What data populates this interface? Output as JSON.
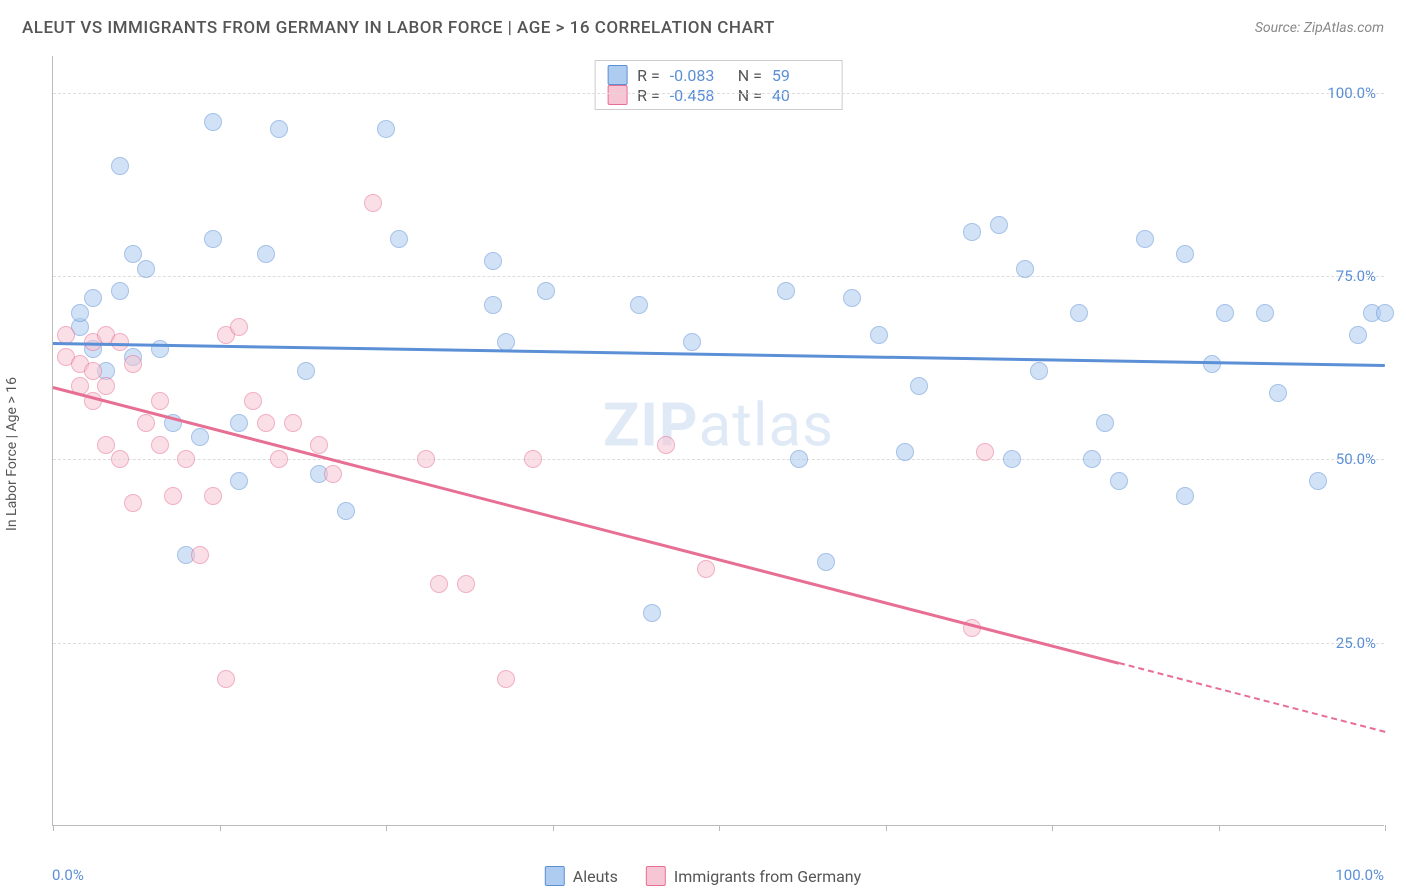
{
  "header": {
    "title": "ALEUT VS IMMIGRANTS FROM GERMANY IN LABOR FORCE | AGE > 16 CORRELATION CHART",
    "source": "Source: ZipAtlas.com"
  },
  "watermark": {
    "bold": "ZIP",
    "rest": "atlas"
  },
  "chart": {
    "type": "scatter",
    "ylabel": "In Labor Force | Age > 16",
    "xlim": [
      0,
      100
    ],
    "ylim": [
      0,
      105
    ],
    "ytick_values": [
      25,
      50,
      75,
      100
    ],
    "ytick_labels": [
      "25.0%",
      "50.0%",
      "75.0%",
      "100.0%"
    ],
    "xtick_values": [
      0,
      12.5,
      25,
      37.5,
      50,
      62.5,
      75,
      87.5,
      100
    ],
    "xaxis_label_left": "0.0%",
    "xaxis_label_right": "100.0%",
    "background_color": "#ffffff",
    "grid_color": "#dddddd",
    "axis_color": "#bbbbbb",
    "label_color": "#5b8fd6",
    "marker_radius": 9,
    "marker_opacity": 0.55,
    "series": [
      {
        "name": "Aleuts",
        "fill": "#aeccf0",
        "stroke": "#5b8fd6",
        "r_value": "-0.083",
        "n_value": "59",
        "trend": {
          "x1": 0,
          "y1": 66,
          "x2": 100,
          "y2": 63,
          "dash_from_x": null
        },
        "points": [
          [
            2,
            68
          ],
          [
            2,
            70
          ],
          [
            3,
            65
          ],
          [
            3,
            72
          ],
          [
            4,
            62
          ],
          [
            5,
            73
          ],
          [
            5,
            90
          ],
          [
            6,
            78
          ],
          [
            6,
            64
          ],
          [
            7,
            76
          ],
          [
            8,
            65
          ],
          [
            9,
            55
          ],
          [
            10,
            37
          ],
          [
            11,
            53
          ],
          [
            12,
            80
          ],
          [
            12,
            96
          ],
          [
            14,
            47
          ],
          [
            14,
            55
          ],
          [
            16,
            78
          ],
          [
            17,
            95
          ],
          [
            19,
            62
          ],
          [
            20,
            48
          ],
          [
            22,
            43
          ],
          [
            25,
            95
          ],
          [
            26,
            80
          ],
          [
            33,
            71
          ],
          [
            33,
            77
          ],
          [
            34,
            66
          ],
          [
            37,
            73
          ],
          [
            44,
            71
          ],
          [
            45,
            29
          ],
          [
            48,
            66
          ],
          [
            55,
            73
          ],
          [
            56,
            50
          ],
          [
            58,
            36
          ],
          [
            60,
            72
          ],
          [
            62,
            67
          ],
          [
            64,
            51
          ],
          [
            65,
            60
          ],
          [
            69,
            81
          ],
          [
            71,
            82
          ],
          [
            72,
            50
          ],
          [
            73,
            76
          ],
          [
            74,
            62
          ],
          [
            77,
            70
          ],
          [
            78,
            50
          ],
          [
            79,
            55
          ],
          [
            80,
            47
          ],
          [
            82,
            80
          ],
          [
            85,
            78
          ],
          [
            85,
            45
          ],
          [
            87,
            63
          ],
          [
            88,
            70
          ],
          [
            91,
            70
          ],
          [
            92,
            59
          ],
          [
            95,
            47
          ],
          [
            98,
            67
          ],
          [
            99,
            70
          ],
          [
            100,
            70
          ]
        ]
      },
      {
        "name": "Immigrants from Germany",
        "fill": "#f6c6d4",
        "stroke": "#e76f94",
        "r_value": "-0.458",
        "n_value": "40",
        "trend": {
          "x1": 0,
          "y1": 60,
          "x2": 100,
          "y2": 13,
          "dash_from_x": 80
        },
        "points": [
          [
            1,
            67
          ],
          [
            1,
            64
          ],
          [
            2,
            63
          ],
          [
            2,
            60
          ],
          [
            3,
            66
          ],
          [
            3,
            62
          ],
          [
            3,
            58
          ],
          [
            4,
            67
          ],
          [
            4,
            60
          ],
          [
            4,
            52
          ],
          [
            5,
            66
          ],
          [
            5,
            50
          ],
          [
            6,
            63
          ],
          [
            6,
            44
          ],
          [
            7,
            55
          ],
          [
            8,
            58
          ],
          [
            8,
            52
          ],
          [
            9,
            45
          ],
          [
            10,
            50
          ],
          [
            11,
            37
          ],
          [
            12,
            45
          ],
          [
            13,
            67
          ],
          [
            13,
            20
          ],
          [
            14,
            68
          ],
          [
            15,
            58
          ],
          [
            16,
            55
          ],
          [
            17,
            50
          ],
          [
            18,
            55
          ],
          [
            20,
            52
          ],
          [
            21,
            48
          ],
          [
            24,
            85
          ],
          [
            28,
            50
          ],
          [
            29,
            33
          ],
          [
            31,
            33
          ],
          [
            34,
            20
          ],
          [
            36,
            50
          ],
          [
            46,
            52
          ],
          [
            49,
            35
          ],
          [
            69,
            27
          ],
          [
            70,
            51
          ]
        ]
      }
    ]
  },
  "stats_box": {
    "r_label": "R =",
    "n_label": "N ="
  },
  "bottom_legend": {
    "items": [
      "Aleuts",
      "Immigrants from Germany"
    ]
  }
}
